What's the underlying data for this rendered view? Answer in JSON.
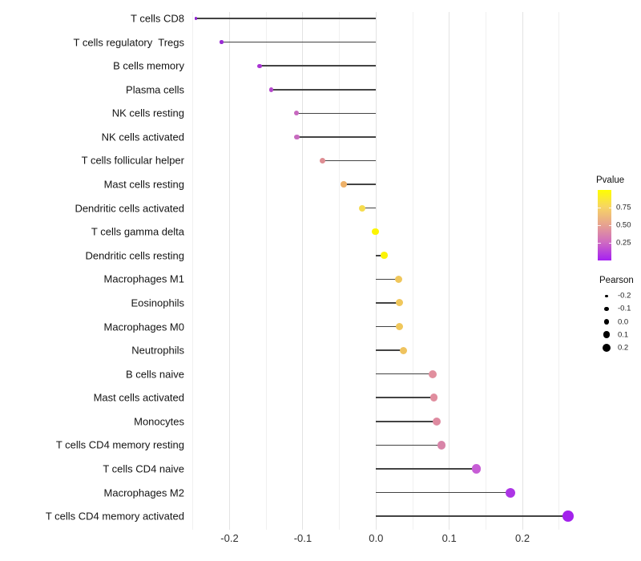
{
  "chart_data": {
    "type": "scatter",
    "subtype": "lollipop",
    "title": "",
    "xlabel": "",
    "ylabel": "",
    "grid": true,
    "xlim": [
      -0.27,
      0.275
    ],
    "x_ticks": [
      "-0.2",
      "-0.1",
      "0.0",
      "0.1",
      "0.2"
    ],
    "x_tick_values": [
      -0.2,
      -0.1,
      0.0,
      0.1,
      0.2
    ],
    "minor_grid_values": [
      -0.25,
      -0.15,
      -0.05,
      0.05,
      0.15,
      0.25
    ],
    "points": [
      {
        "label": "T cells CD8",
        "pearson": -0.246,
        "color": "#8f23d1"
      },
      {
        "label": "T cells regulatory  Tregs",
        "pearson": -0.211,
        "color": "#9a2bd4"
      },
      {
        "label": "B cells memory",
        "pearson": -0.159,
        "color": "#a933d3"
      },
      {
        "label": "Plasma cells",
        "pearson": -0.143,
        "color": "#b347cb"
      },
      {
        "label": "NK cells resting",
        "pearson": -0.109,
        "color": "#c768bf"
      },
      {
        "label": "NK cells activated",
        "pearson": -0.108,
        "color": "#c76bbf"
      },
      {
        "label": "T cells follicular helper",
        "pearson": -0.073,
        "color": "#de8d93"
      },
      {
        "label": "Mast cells resting",
        "pearson": -0.044,
        "color": "#edb169"
      },
      {
        "label": "Dendritic cells activated",
        "pearson": -0.019,
        "color": "#f6dc4f"
      },
      {
        "label": "T cells gamma delta",
        "pearson": -0.001,
        "color": "#fcf500"
      },
      {
        "label": "Dendritic cells resting",
        "pearson": 0.011,
        "color": "#fbf307"
      },
      {
        "label": "Macrophages M1",
        "pearson": 0.031,
        "color": "#f0c75b"
      },
      {
        "label": "Eosinophils",
        "pearson": 0.032,
        "color": "#f0c75b"
      },
      {
        "label": "Macrophages M0",
        "pearson": 0.032,
        "color": "#f0c75b"
      },
      {
        "label": "Neutrophils",
        "pearson": 0.037,
        "color": "#efc35f"
      },
      {
        "label": "B cells naive",
        "pearson": 0.077,
        "color": "#e18f9e"
      },
      {
        "label": "Mast cells activated",
        "pearson": 0.079,
        "color": "#e08d9e"
      },
      {
        "label": "Monocytes",
        "pearson": 0.083,
        "color": "#de8aa0"
      },
      {
        "label": "T cells CD4 memory resting",
        "pearson": 0.089,
        "color": "#d884a8"
      },
      {
        "label": "T cells CD4 naive",
        "pearson": 0.137,
        "color": "#c75dd6"
      },
      {
        "label": "Macrophages M2",
        "pearson": 0.183,
        "color": "#ac35e5"
      },
      {
        "label": "T cells CD4 memory activated",
        "pearson": 0.262,
        "color": "#a322ec"
      }
    ],
    "legend_position": "right",
    "legends": {
      "pvalue": {
        "title": "Pvalue",
        "tick_labels": [
          "0.75",
          "0.50",
          "0.25"
        ],
        "tick_values": [
          0.75,
          0.5,
          0.25
        ],
        "range": [
          0,
          1
        ],
        "gradient_top_to_bottom": [
          "#fefe00",
          "#f7d563",
          "#e7a38f",
          "#cf6bc1",
          "#a520f2"
        ]
      },
      "pearson": {
        "title": "Pearson",
        "tick_labels": [
          "-0.2",
          "-0.1",
          "0.0",
          "0.1",
          "0.2"
        ],
        "tick_values": [
          -0.2,
          -0.1,
          0.0,
          0.1,
          0.2
        ],
        "dot_color": "#000000"
      }
    },
    "colors": {
      "stick": "#434343",
      "grid_major": "#e3e3e3",
      "grid_minor": "#f0f0f0",
      "axis_text": "#303030",
      "label_text": "#141414",
      "background": "#ffffff"
    }
  }
}
